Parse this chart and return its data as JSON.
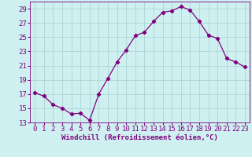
{
  "x": [
    0,
    1,
    2,
    3,
    4,
    5,
    6,
    7,
    8,
    9,
    10,
    11,
    12,
    13,
    14,
    15,
    16,
    17,
    18,
    19,
    20,
    21,
    22,
    23
  ],
  "y": [
    17.2,
    16.7,
    15.5,
    15.0,
    14.2,
    14.3,
    13.3,
    17.0,
    19.2,
    21.5,
    23.2,
    25.2,
    25.7,
    27.2,
    28.5,
    28.7,
    29.3,
    28.8,
    27.2,
    25.3,
    24.8,
    22.0,
    21.5,
    20.8
  ],
  "line_color": "#800080",
  "marker": "D",
  "marker_size": 2.2,
  "bg_color": "#cff0f0",
  "grid_color": "#aed4d4",
  "xlabel": "Windchill (Refroidissement éolien,°C)",
  "xlabel_color": "#800080",
  "tick_color": "#800080",
  "ylim": [
    13,
    30
  ],
  "yticks": [
    13,
    15,
    17,
    19,
    21,
    23,
    25,
    27,
    29
  ],
  "xticks": [
    0,
    1,
    2,
    3,
    4,
    5,
    6,
    7,
    8,
    9,
    10,
    11,
    12,
    13,
    14,
    15,
    16,
    17,
    18,
    19,
    20,
    21,
    22,
    23
  ],
  "axis_fontsize": 6.5,
  "tick_fontsize": 6.5
}
